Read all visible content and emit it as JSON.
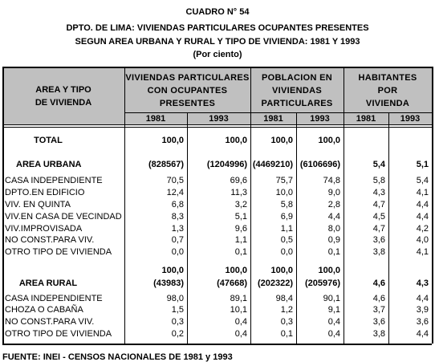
{
  "header": {
    "title": "CUADRO N° 54",
    "subtitle_1": "DPTO. DE LIMA: VIVIENDAS PARTICULARES OCUPANTES PRESENTES",
    "subtitle_2": "SEGUN AREA URBANA Y RURAL Y TIPO DE VIVIENDA: 1981 Y 1993",
    "unit": "(Por ciento)"
  },
  "table": {
    "label_header": [
      "AREA Y TIPO",
      "DE VIVIENDA"
    ],
    "groups": [
      [
        "VIVIENDAS PARTICULARES",
        "CON OCUPANTES",
        "PRESENTES"
      ],
      [
        "POBLACION EN",
        "VIVIENDAS",
        "PARTICULARES"
      ],
      [
        "HABITANTES",
        "POR",
        "VIVIENDA"
      ]
    ],
    "years": [
      "1981",
      "1993",
      "1981",
      "1993",
      "1981",
      "1993"
    ],
    "rows": [
      {
        "label": "TOTAL",
        "cells": [
          "100,0",
          "100,0",
          "100,0",
          "100,0",
          null,
          null
        ]
      },
      {
        "label": "AREA URBANA",
        "cells": [
          "(828567)",
          "(1204996)",
          "(4469210)",
          "(6106696)",
          "5,4",
          "5,1"
        ]
      },
      {
        "label": "CASA INDEPENDIENTE",
        "cells": [
          "70,5",
          "69,6",
          "75,7",
          "74,8",
          "5,8",
          "5,4"
        ]
      },
      {
        "label": "DPTO.EN EDIFICIO",
        "cells": [
          "12,4",
          "11,3",
          "10,0",
          "9,0",
          "4,3",
          "4,1"
        ]
      },
      {
        "label": "VIV. EN QUINTA",
        "cells": [
          "6,8",
          "3,2",
          "5,8",
          "2,8",
          "4,7",
          "4,4"
        ]
      },
      {
        "label": "VIV.EN CASA DE VECINDAD",
        "cells": [
          "8,3",
          "5,1",
          "6,9",
          "4,4",
          "4,5",
          "4,4"
        ]
      },
      {
        "label": "VIV.IMPROVISADA",
        "cells": [
          "1,3",
          "9,6",
          "1,1",
          "8,0",
          "4,7",
          "4,2"
        ]
      },
      {
        "label": "NO CONST.PARA VIV.",
        "cells": [
          "0,7",
          "1,1",
          "0,5",
          "0,9",
          "3,6",
          "4,0"
        ]
      },
      {
        "label": "OTRO TIPO DE VIVIENDA",
        "cells": [
          "0,0",
          "0,1",
          "0,0",
          "0,1",
          "3,8",
          "4,1"
        ]
      },
      {
        "label": "AREA RURAL",
        "cells": [
          [
            "100,0",
            "(43983)"
          ],
          [
            "100,0",
            "(47668)"
          ],
          [
            "100,0",
            "(202322)"
          ],
          [
            "100,0",
            "(205976)"
          ],
          "4,6",
          "4,3"
        ]
      },
      {
        "label": "CASA INDEPENDIENTE",
        "cells": [
          "98,0",
          "89,1",
          "98,4",
          "90,1",
          "4,6",
          "4,4"
        ]
      },
      {
        "label": "CHOZA O CABAÑA",
        "cells": [
          "1,5",
          "10,1",
          "1,2",
          "9,1",
          "3,7",
          "3,9"
        ]
      },
      {
        "label": "NO CONST.PARA VIV.",
        "cells": [
          "0,3",
          "0,4",
          "0,3",
          "0,4",
          "3,6",
          "3,6"
        ]
      },
      {
        "label": "OTRO TIPO DE VIVIENDA",
        "cells": [
          "0,2",
          "0,4",
          "0,1",
          "0,4",
          "3,8",
          "4,4"
        ]
      }
    ]
  },
  "footer": {
    "source": "FUENTE: INEI - CENSOS NACIONALES DE 1981 y 1993"
  }
}
